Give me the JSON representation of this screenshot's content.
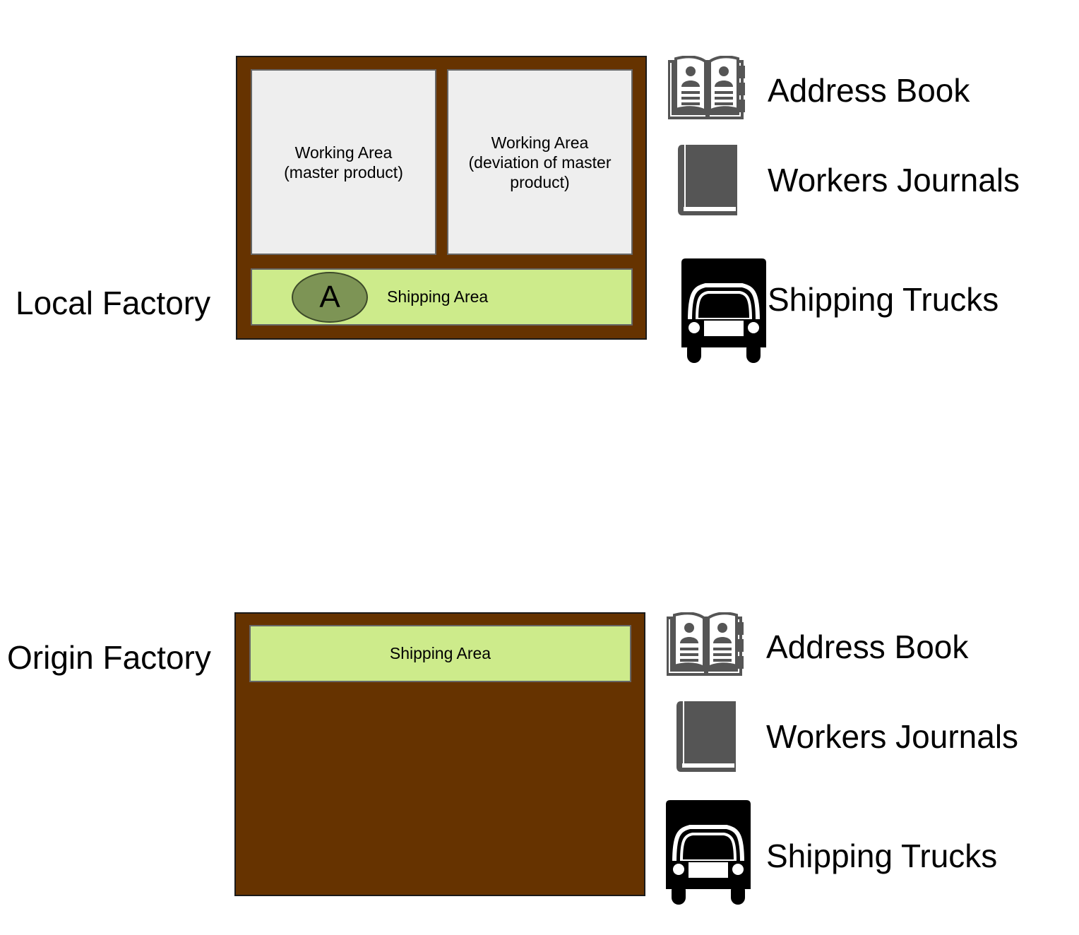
{
  "colors": {
    "factory": "#663300",
    "working_area": "#eeeeee",
    "shipping_area": "#cdeb8b",
    "token": "#7d9455",
    "icon_gray": "#555555",
    "truck": "#000000"
  },
  "local_factory": {
    "label": "Local Factory",
    "working_area_master": "Working Area\n(master product)",
    "working_area_deviation": "Working Area\n(deviation of master\nproduct)",
    "shipping_area": "Shipping Area",
    "token": "A"
  },
  "origin_factory": {
    "label": "Origin Factory",
    "shipping_area": "Shipping Area"
  },
  "legend_local": {
    "address_book": {
      "label": "Address Book",
      "icon": "address-book-icon"
    },
    "workers_journals": {
      "label": "Workers Journals",
      "icon": "book-icon"
    },
    "shipping_trucks": {
      "label": "Shipping Trucks",
      "icon": "truck-icon"
    }
  },
  "legend_origin": {
    "address_book": {
      "label": "Address Book",
      "icon": "address-book-icon"
    },
    "workers_journals": {
      "label": "Workers Journals",
      "icon": "book-icon"
    },
    "shipping_trucks": {
      "label": "Shipping Trucks",
      "icon": "truck-icon"
    }
  }
}
